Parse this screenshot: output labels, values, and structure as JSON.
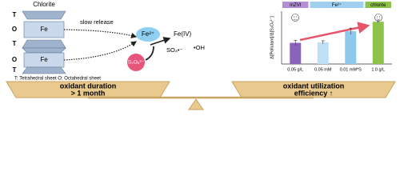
{
  "chlorite": {
    "title": "Chlorite",
    "layers": [
      "T",
      "O",
      "T",
      "O",
      "T"
    ],
    "fe_labels": [
      "Fe",
      "Fe"
    ]
  },
  "release_label": "slow release",
  "species": {
    "fe2": "Fe²⁺",
    "persulfate": "S₂O₈²⁻",
    "fe4": "Fe(IV)",
    "sulfate_radical": "SO₄•⁻",
    "hydroxyl_radical": "•OH"
  },
  "sheet_note": "T: Tetrahedral sheet O: Octahedral sheet",
  "balance": {
    "left": [
      "oxidant duration",
      "> 1 month"
    ],
    "right": [
      "oxidant utilization",
      "efficiency ↑"
    ]
  },
  "chart_data": {
    "type": "bar",
    "y_label": "Δ[Pollutant]/Δ[S₂O₈²⁻]",
    "categories": [
      "0.05 g/L",
      "0.05 mM",
      "0.01 mM*S",
      "1.0 g/L"
    ],
    "values": [
      0.4,
      0.41,
      0.62,
      0.8
    ],
    "errors": [
      0.05,
      0.03,
      0.06,
      0.02
    ],
    "colors": [
      "#8a63bd",
      "#bfe0f4",
      "#8ec8ec",
      "#8cc34b"
    ],
    "ylim": [
      0,
      1
    ],
    "groups": [
      {
        "name": "mZVI",
        "color": "#b48fd6",
        "span": [
          0,
          0
        ]
      },
      {
        "name": "Fe²⁺",
        "color": "#9fd0ef",
        "span": [
          1,
          2
        ]
      },
      {
        "name": "chlorite",
        "color": "#8cc34b",
        "span": [
          3,
          3
        ]
      }
    ]
  }
}
